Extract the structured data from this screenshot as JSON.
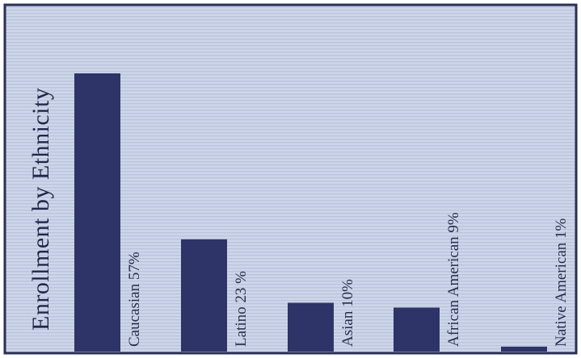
{
  "chart_data": {
    "type": "bar",
    "orientation": "vertical",
    "title": "Enrollment by Ethnicity",
    "xlabel": "",
    "ylabel": "",
    "categories": [
      "Caucasian",
      "Latino",
      "Asian",
      "African American",
      "Native American"
    ],
    "values": [
      57,
      23,
      10,
      9,
      1
    ],
    "labels": [
      "Caucasian 57%",
      "Latino 23 %",
      "Asian 10%",
      "African American 9%",
      "Native American 1%"
    ],
    "unit": "%",
    "ylim": [
      0,
      60
    ],
    "grid": false,
    "legend": "none",
    "colors": {
      "bar": "#2e3467",
      "background": "#c9d2e6",
      "border": "#2a2f55",
      "text": "#2a2d4c"
    }
  }
}
